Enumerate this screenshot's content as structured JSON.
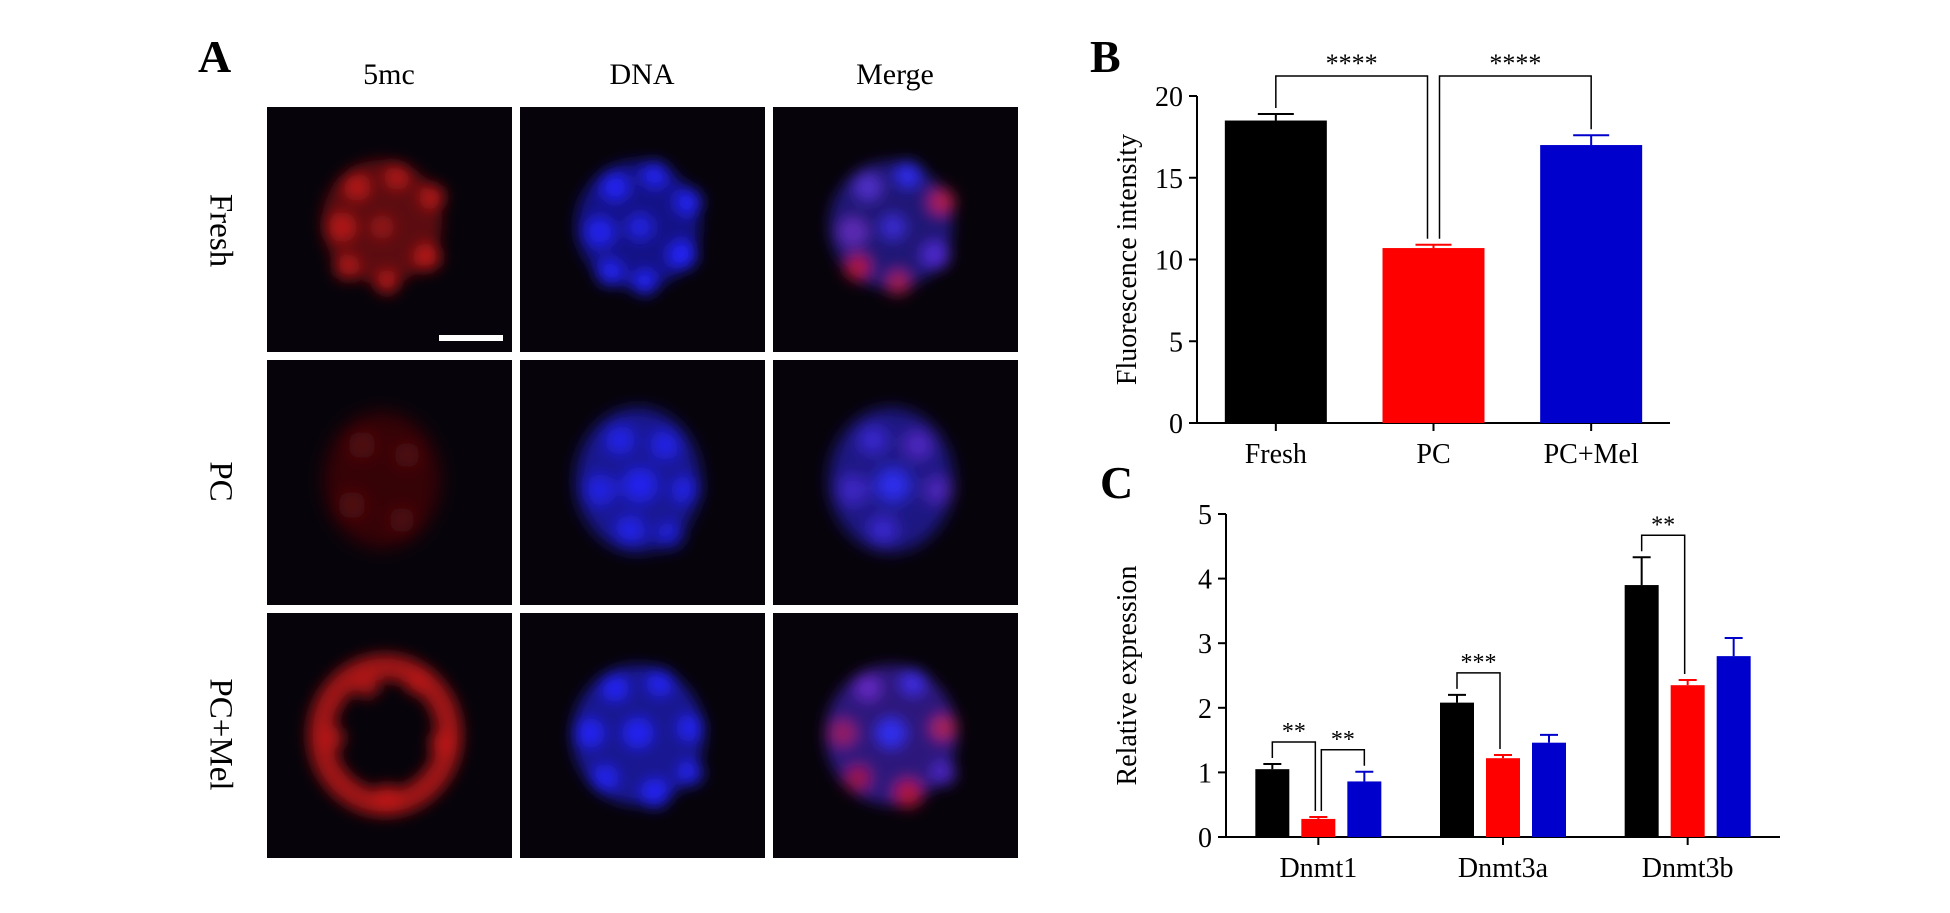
{
  "panel_a": {
    "letter": "A",
    "column_labels": [
      "5mc",
      "DNA",
      "Merge"
    ],
    "row_labels": [
      "Fresh",
      "PC",
      "PC+Mel"
    ]
  },
  "colors": {
    "fresh": "#000000",
    "pc": "#ff0000",
    "pc_mel": "#0000cc",
    "stain_5mc": "#d01010",
    "stain_dna": "#2020ff"
  },
  "chart_data": [
    {
      "panel": "B",
      "type": "bar",
      "ylabel": "Fluorescence intensity",
      "ylim": [
        0,
        20
      ],
      "yticks": [
        "0",
        "5",
        "10",
        "15",
        "20"
      ],
      "categories": [
        "Fresh",
        "PC",
        "PC+Mel"
      ],
      "values": [
        18.5,
        10.7,
        17.0
      ],
      "errors": [
        0.4,
        0.2,
        0.6
      ],
      "significance": [
        {
          "from": "Fresh",
          "to": "PC",
          "label": "****"
        },
        {
          "from": "PC",
          "to": "PC+Mel",
          "label": "****"
        }
      ]
    },
    {
      "panel": "C",
      "type": "bar",
      "ylabel": "Relative expression",
      "ylim": [
        0,
        5
      ],
      "yticks": [
        "0",
        "1",
        "2",
        "3",
        "4",
        "5"
      ],
      "categories": [
        "Dnmt1",
        "Dnmt3a",
        "Dnmt3b"
      ],
      "series": [
        {
          "values": [
            1.05,
            2.08,
            3.9
          ],
          "errors": [
            0.08,
            0.12,
            0.43
          ]
        },
        {
          "values": [
            0.28,
            1.22,
            2.35
          ],
          "errors": [
            0.03,
            0.05,
            0.08
          ]
        },
        {
          "values": [
            0.86,
            1.46,
            2.8
          ],
          "errors": [
            0.15,
            0.12,
            0.28
          ]
        }
      ],
      "significance": [
        {
          "group": "Dnmt1",
          "from": 0,
          "to": 1,
          "label": "**"
        },
        {
          "group": "Dnmt1",
          "from": 1,
          "to": 2,
          "label": "**"
        },
        {
          "group": "Dnmt3a",
          "from": 0,
          "to": 1,
          "label": "***"
        },
        {
          "group": "Dnmt3b",
          "from": 0,
          "to": 1,
          "label": "**"
        }
      ]
    }
  ]
}
